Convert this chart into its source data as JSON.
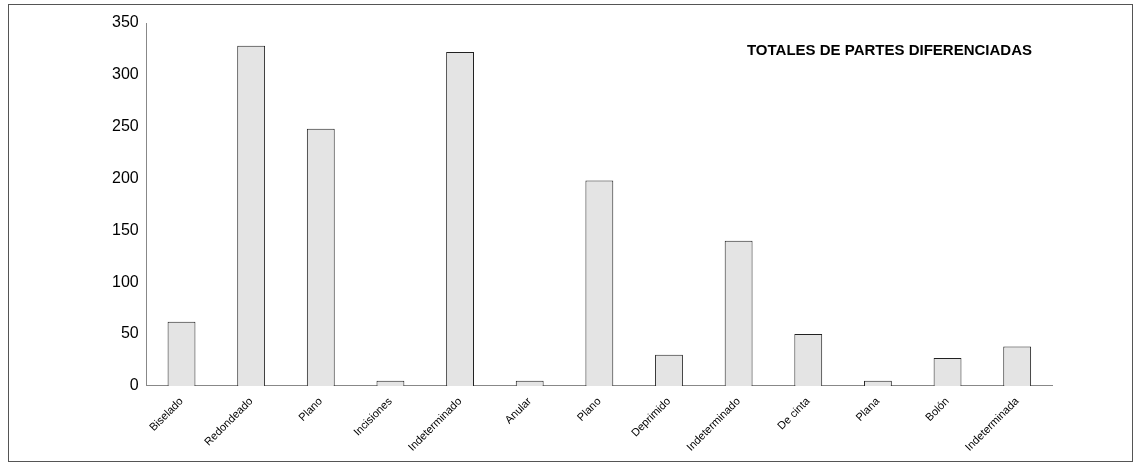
{
  "chart_data": {
    "type": "bar",
    "title": "TOTALES DE PARTES DIFERENCIADAS",
    "categories": [
      "Biselado",
      "Redondeado",
      "Plano",
      "Incisiones",
      "Indeterminado",
      "Anular",
      "Plano",
      "Deprimido",
      "Indeterminado",
      "De cinta",
      "Plana",
      "Bolón",
      "Indeterminada"
    ],
    "values": [
      62,
      328,
      248,
      5,
      322,
      5,
      198,
      30,
      140,
      50,
      5,
      27,
      38
    ],
    "color": "#e4e4e4",
    "ylim": [
      0,
      350
    ],
    "yticks": [
      0,
      50,
      100,
      150,
      200,
      250,
      300,
      350
    ],
    "grid": false,
    "legend": false
  }
}
